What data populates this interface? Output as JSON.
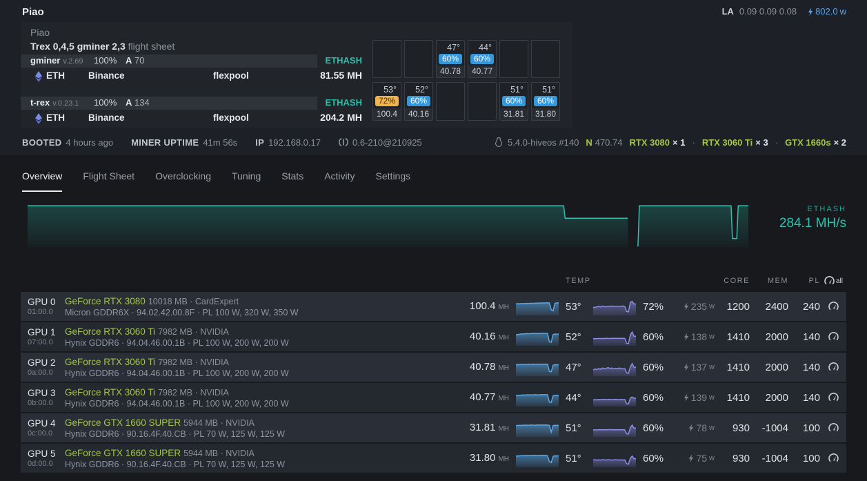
{
  "colors": {
    "teal": "#2cc2ae",
    "green": "#a3c644",
    "blue": "#58a6e8",
    "badge_blue": "#3598dc",
    "badge_amber": "#f0b44c"
  },
  "header": {
    "title": "Piao",
    "la_label": "LA",
    "la_values": "0.09 0.09 0.08",
    "power_value": "802.0",
    "power_unit": "w"
  },
  "panel": {
    "worker_name": "Piao",
    "flight_sheet_name": "Trex 0,4,5 gminer 2,3",
    "flight_sheet_suffix": "flight sheet",
    "miners": [
      {
        "name": "gminer",
        "version": "v.2.69",
        "load": "100%",
        "accepted_label": "A",
        "accepted": "70",
        "algo": "ETHASH",
        "coin": "ETH",
        "wallet": "Binance",
        "pool": "flexpool",
        "hashrate": "81.55",
        "hashrate_unit": "MH"
      },
      {
        "name": "t-rex",
        "version": "v.0.23.1",
        "load": "100%",
        "accepted_label": "A",
        "accepted": "134",
        "algo": "ETHASH",
        "coin": "ETH",
        "wallet": "Binance",
        "pool": "flexpool",
        "hashrate": "204.2",
        "hashrate_unit": "MH"
      }
    ],
    "gpu_grid": {
      "cells": [
        null,
        null,
        {
          "temp": "47°",
          "fan": "60%",
          "hash": "40.78",
          "style": "blue"
        },
        {
          "temp": "44°",
          "fan": "60%",
          "hash": "40.77",
          "style": "blue"
        },
        null,
        null,
        {
          "temp": "53°",
          "fan": "72%",
          "hash": "100.4",
          "style": "amber"
        },
        {
          "temp": "52°",
          "fan": "60%",
          "hash": "40.16",
          "style": "blue"
        },
        null,
        null,
        {
          "temp": "51°",
          "fan": "60%",
          "hash": "31.81",
          "style": "blue"
        },
        {
          "temp": "51°",
          "fan": "60%",
          "hash": "31.80",
          "style": "blue"
        }
      ]
    }
  },
  "statusbar": {
    "booted_label": "BOOTED",
    "booted_value": "4 hours ago",
    "uptime_label": "MINER UPTIME",
    "uptime_value": "41m 56s",
    "ip_label": "IP",
    "ip_value": "192.168.0.17",
    "agent_version": "0.6-210@210925",
    "kernel": "5.4.0-hiveos #140",
    "driver_label": "N",
    "driver_version": "470.74",
    "gpus": [
      {
        "name": "RTX 3080",
        "count": "× 1"
      },
      {
        "name": "RTX 3060 Ti",
        "count": "× 3"
      },
      {
        "name": "GTX 1660s",
        "count": "× 2"
      }
    ],
    "separator": "·"
  },
  "tabs": [
    {
      "label": "Overview"
    },
    {
      "label": "Flight Sheet"
    },
    {
      "label": "Overclocking"
    },
    {
      "label": "Tuning"
    },
    {
      "label": "Stats"
    },
    {
      "label": "Activity"
    },
    {
      "label": "Settings"
    }
  ],
  "chart": {
    "algo": "ETHASH",
    "hashrate": "284.1 MH/s"
  },
  "chart_data": {
    "type": "area",
    "title": "ETHASH total hashrate",
    "ylabel": "MH/s",
    "algo": "ETHASH",
    "current_value": 284.1,
    "steady_value": 285,
    "drop_value": 244,
    "dip_value": 178,
    "ylim": [
      150,
      292
    ],
    "xlim": [
      0,
      100
    ],
    "grid": false,
    "legend": "none",
    "series": [
      {
        "name": "ETHASH MH/s",
        "points": [
          [
            0,
            285
          ],
          [
            74.3,
            285
          ],
          [
            74.5,
            244
          ],
          [
            83.2,
            244
          ],
          null,
          [
            84.6,
            152
          ],
          [
            84.8,
            285
          ],
          [
            97.5,
            285
          ],
          [
            97.7,
            178
          ],
          [
            98.3,
            178
          ],
          [
            98.5,
            285
          ],
          [
            99.9,
            285
          ]
        ]
      }
    ]
  },
  "table": {
    "headers": {
      "temp": "TEMP",
      "core": "CORE",
      "mem": "MEM",
      "pl": "PL",
      "all_label": "all"
    },
    "rows": [
      {
        "index": "GPU 0",
        "bus": "01:00.0",
        "name": "GeForce RTX 3080",
        "mem_info": "10018 MB · CardExpert",
        "details": "Micron GDDR6X · 94.02.42.00.8F · PL 100 W, 320 W, 350 W",
        "hashrate": "100.4",
        "hashrate_unit": "MH",
        "temp": "53°",
        "fan": "72%",
        "power": "235",
        "power_unit": "w",
        "core": "1200",
        "mem": "2400",
        "pl": "240",
        "temp_spark": [
          0.74,
          0.75,
          0.74,
          0.76,
          0.75,
          0.76,
          0.77,
          0.76,
          0.78,
          0.77,
          0.78,
          0.79,
          0.78,
          0.79,
          0.8,
          0.79,
          0.8,
          0.81,
          0.8,
          0.35,
          0.3,
          0.78,
          0.8,
          0.8
        ],
        "fan_spark": [
          0.5,
          0.52,
          0.55,
          0.58,
          0.54,
          0.6,
          0.57,
          0.55,
          0.58,
          0.56,
          0.6,
          0.58,
          0.57,
          0.59,
          0.56,
          0.58,
          0.6,
          0.57,
          0.25,
          0.22,
          0.85,
          0.9,
          0.72,
          0.74
        ]
      },
      {
        "index": "GPU 1",
        "bus": "07:00.0",
        "name": "GeForce RTX 3060 Ti",
        "mem_info": "7982 MB · NVIDIA",
        "details": "Hynix GDDR6 · 94.04.46.00.1B · PL 100 W, 200 W, 200 W",
        "hashrate": "40.16",
        "hashrate_unit": "MH",
        "temp": "52°",
        "fan": "60%",
        "power": "138",
        "power_unit": "w",
        "core": "1410",
        "mem": "2000",
        "pl": "140",
        "temp_spark": [
          0.7,
          0.72,
          0.74,
          0.76,
          0.75,
          0.77,
          0.78,
          0.77,
          0.78,
          0.79,
          0.78,
          0.79,
          0.78,
          0.79,
          0.8,
          0.79,
          0.8,
          0.79,
          0.25,
          0.22,
          0.72,
          0.75,
          0.74,
          0.75
        ],
        "fan_spark": [
          0.45,
          0.46,
          0.45,
          0.47,
          0.46,
          0.47,
          0.46,
          0.48,
          0.47,
          0.46,
          0.48,
          0.47,
          0.48,
          0.47,
          0.48,
          0.47,
          0.48,
          0.47,
          0.15,
          0.14,
          0.7,
          0.88,
          0.6,
          0.62
        ]
      },
      {
        "index": "GPU 2",
        "bus": "0a:00.0",
        "name": "GeForce RTX 3060 Ti",
        "mem_info": "7982 MB · NVIDIA",
        "details": "Hynix GDDR6 · 94.04.46.00.1B · PL 100 W, 200 W, 200 W",
        "hashrate": "40.78",
        "hashrate_unit": "MH",
        "temp": "47°",
        "fan": "60%",
        "power": "137",
        "power_unit": "w",
        "core": "1410",
        "mem": "2000",
        "pl": "140",
        "temp_spark": [
          0.72,
          0.74,
          0.73,
          0.75,
          0.74,
          0.76,
          0.75,
          0.76,
          0.75,
          0.77,
          0.76,
          0.75,
          0.76,
          0.77,
          0.76,
          0.77,
          0.76,
          0.77,
          0.3,
          0.28,
          0.7,
          0.73,
          0.72,
          0.73
        ],
        "fan_spark": [
          0.4,
          0.45,
          0.42,
          0.48,
          0.44,
          0.52,
          0.46,
          0.5,
          0.55,
          0.48,
          0.52,
          0.46,
          0.5,
          0.47,
          0.52,
          0.48,
          0.46,
          0.48,
          0.2,
          0.18,
          0.6,
          0.8,
          0.55,
          0.58
        ]
      },
      {
        "index": "GPU 3",
        "bus": "0b:00.0",
        "name": "GeForce RTX 3060 Ti",
        "mem_info": "7982 MB · NVIDIA",
        "details": "Hynix GDDR6 · 94.04.46.00.1B · PL 100 W, 200 W, 200 W",
        "hashrate": "40.77",
        "hashrate_unit": "MH",
        "temp": "44°",
        "fan": "60%",
        "power": "139",
        "power_unit": "w",
        "core": "1410",
        "mem": "2000",
        "pl": "140",
        "temp_spark": [
          0.7,
          0.72,
          0.71,
          0.73,
          0.74,
          0.73,
          0.75,
          0.74,
          0.75,
          0.74,
          0.76,
          0.75,
          0.74,
          0.75,
          0.76,
          0.75,
          0.76,
          0.75,
          0.28,
          0.26,
          0.68,
          0.72,
          0.71,
          0.72
        ],
        "fan_spark": [
          0.42,
          0.44,
          0.43,
          0.45,
          0.44,
          0.46,
          0.45,
          0.44,
          0.46,
          0.45,
          0.44,
          0.45,
          0.46,
          0.45,
          0.44,
          0.45,
          0.44,
          0.45,
          0.18,
          0.16,
          0.55,
          0.6,
          0.52,
          0.54
        ]
      },
      {
        "index": "GPU 4",
        "bus": "0c:00.0",
        "name": "GeForce GTX 1660 SUPER",
        "mem_info": "5944 MB · NVIDIA",
        "details": "Hynix GDDR6 · 90.16.4F.40.CB · PL 70 W, 125 W, 125 W",
        "hashrate": "31.81",
        "hashrate_unit": "MH",
        "temp": "51°",
        "fan": "60%",
        "power": "78",
        "power_unit": "w",
        "core": "930",
        "mem": "-1004",
        "pl": "100",
        "temp_spark": [
          0.72,
          0.73,
          0.74,
          0.73,
          0.75,
          0.74,
          0.75,
          0.74,
          0.76,
          0.75,
          0.74,
          0.75,
          0.76,
          0.75,
          0.76,
          0.75,
          0.76,
          0.75,
          0.74,
          0.3,
          0.72,
          0.74,
          0.73,
          0.74
        ],
        "fan_spark": [
          0.44,
          0.45,
          0.44,
          0.46,
          0.45,
          0.46,
          0.45,
          0.46,
          0.45,
          0.47,
          0.46,
          0.45,
          0.46,
          0.45,
          0.46,
          0.45,
          0.46,
          0.45,
          0.2,
          0.18,
          0.6,
          0.75,
          0.55,
          0.57
        ]
      },
      {
        "index": "GPU 5",
        "bus": "0d:00.0",
        "name": "GeForce GTX 1660 SUPER",
        "mem_info": "5944 MB · NVIDIA",
        "details": "Hynix GDDR6 · 90.16.4F.40.CB · PL 70 W, 125 W, 125 W",
        "hashrate": "31.80",
        "hashrate_unit": "MH",
        "temp": "51°",
        "fan": "60%",
        "power": "75",
        "power_unit": "w",
        "core": "930",
        "mem": "-1004",
        "pl": "100",
        "temp_spark": [
          0.71,
          0.72,
          0.73,
          0.74,
          0.73,
          0.75,
          0.74,
          0.75,
          0.74,
          0.75,
          0.76,
          0.75,
          0.74,
          0.76,
          0.75,
          0.76,
          0.75,
          0.74,
          0.35,
          0.3,
          0.7,
          0.73,
          0.72,
          0.73
        ],
        "fan_spark": [
          0.46,
          0.48,
          0.45,
          0.47,
          0.46,
          0.48,
          0.47,
          0.46,
          0.48,
          0.47,
          0.46,
          0.47,
          0.48,
          0.47,
          0.46,
          0.47,
          0.46,
          0.47,
          0.22,
          0.2,
          0.58,
          0.72,
          0.54,
          0.56
        ]
      }
    ]
  }
}
